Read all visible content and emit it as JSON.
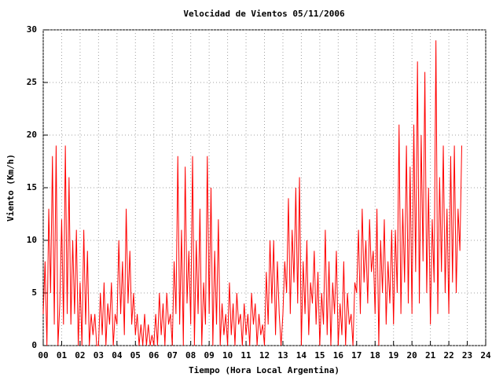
{
  "chart_data": {
    "type": "line",
    "title": "Velocidad de Vientos 05/11/2006",
    "x_label": "Tiempo (Hora Local Argentina)",
    "y_label": "Viento (Km/h)",
    "color": "#ff0000",
    "grid": true,
    "xlim": [
      0,
      24
    ],
    "ylim": [
      0,
      30
    ],
    "xticks": [
      {
        "value": 0,
        "label": "00"
      },
      {
        "value": 1,
        "label": "01"
      },
      {
        "value": 2,
        "label": "02"
      },
      {
        "value": 3,
        "label": "03"
      },
      {
        "value": 4,
        "label": "04"
      },
      {
        "value": 5,
        "label": "05"
      },
      {
        "value": 6,
        "label": "06"
      },
      {
        "value": 7,
        "label": "07"
      },
      {
        "value": 8,
        "label": "08"
      },
      {
        "value": 9,
        "label": "09"
      },
      10,
      11,
      12,
      13,
      14,
      15,
      16,
      17,
      18,
      19,
      20,
      21,
      22,
      23,
      24
    ],
    "yticks": [
      0,
      5,
      10,
      15,
      20,
      25,
      30
    ],
    "x": [
      0,
      0.1,
      0.2,
      0.3,
      0.4,
      0.5,
      0.6,
      0.7,
      0.8,
      0.9,
      1,
      1.1,
      1.2,
      1.3,
      1.4,
      1.5,
      1.6,
      1.7,
      1.8,
      1.9,
      2,
      2.1,
      2.2,
      2.3,
      2.4,
      2.5,
      2.6,
      2.7,
      2.8,
      2.9,
      3,
      3.1,
      3.2,
      3.3,
      3.4,
      3.5,
      3.6,
      3.7,
      3.8,
      3.9,
      4,
      4.1,
      4.2,
      4.3,
      4.4,
      4.5,
      4.6,
      4.7,
      4.8,
      4.9,
      5,
      5.1,
      5.2,
      5.3,
      5.4,
      5.5,
      5.6,
      5.7,
      5.8,
      5.9,
      6,
      6.1,
      6.2,
      6.3,
      6.4,
      6.5,
      6.6,
      6.7,
      6.8,
      6.9,
      7,
      7.1,
      7.2,
      7.3,
      7.4,
      7.5,
      7.6,
      7.7,
      7.8,
      7.9,
      8,
      8.1,
      8.2,
      8.3,
      8.4,
      8.5,
      8.6,
      8.7,
      8.8,
      8.9,
      9,
      9.1,
      9.2,
      9.3,
      9.4,
      9.5,
      9.6,
      9.7,
      9.8,
      9.9,
      10,
      10.1,
      10.2,
      10.3,
      10.4,
      10.5,
      10.6,
      10.7,
      10.8,
      10.9,
      11,
      11.1,
      11.2,
      11.3,
      11.4,
      11.5,
      11.6,
      11.7,
      11.8,
      11.9,
      12,
      12.1,
      12.2,
      12.3,
      12.4,
      12.5,
      12.6,
      12.7,
      12.8,
      12.9,
      13,
      13.1,
      13.2,
      13.3,
      13.4,
      13.5,
      13.6,
      13.7,
      13.8,
      13.9,
      14,
      14.1,
      14.2,
      14.3,
      14.4,
      14.5,
      14.6,
      14.7,
      14.8,
      14.9,
      15,
      15.1,
      15.2,
      15.3,
      15.4,
      15.5,
      15.6,
      15.7,
      15.8,
      15.9,
      16,
      16.1,
      16.2,
      16.3,
      16.4,
      16.5,
      16.6,
      16.7,
      16.8,
      16.9,
      17,
      17.1,
      17.2,
      17.3,
      17.4,
      17.5,
      17.6,
      17.7,
      17.8,
      17.9,
      18,
      18.1,
      18.2,
      18.3,
      18.4,
      18.5,
      18.6,
      18.7,
      18.8,
      18.9,
      19,
      19.1,
      19.2,
      19.3,
      19.4,
      19.5,
      19.6,
      19.7,
      19.8,
      19.9,
      20,
      20.1,
      20.2,
      20.3,
      20.4,
      20.5,
      20.6,
      20.7,
      20.8,
      20.9,
      21,
      21.1,
      21.2,
      21.3,
      21.4,
      21.5,
      21.6,
      21.7,
      21.8,
      21.9,
      22,
      22.1,
      22.2,
      22.3,
      22.4,
      22.5,
      22.6,
      22.7
    ],
    "values": [
      3,
      8,
      0,
      13,
      5,
      18,
      2,
      19,
      0,
      4,
      12,
      2,
      19,
      3,
      16,
      2,
      10,
      3,
      11,
      0,
      6,
      0,
      11,
      2,
      9,
      0,
      3,
      1,
      3,
      0,
      0,
      5,
      1,
      6,
      0,
      4,
      2,
      6,
      0,
      3,
      2,
      10,
      3,
      8,
      1,
      13,
      4,
      9,
      2,
      5,
      1,
      3,
      0,
      2,
      0,
      3,
      0,
      2,
      0,
      1,
      0,
      3,
      0,
      5,
      1,
      4,
      0,
      5,
      2,
      3,
      0,
      8,
      3,
      18,
      2,
      11,
      0,
      17,
      4,
      9,
      2,
      18,
      0,
      10,
      3,
      13,
      0,
      6,
      2,
      18,
      3,
      15,
      0,
      9,
      2,
      12,
      0,
      4,
      1,
      3,
      0,
      6,
      1,
      4,
      0,
      5,
      2,
      3,
      0,
      4,
      1,
      3,
      0,
      5,
      2,
      4,
      0,
      3,
      1,
      2,
      0,
      7,
      2,
      10,
      4,
      10,
      1,
      8,
      3,
      0,
      3,
      8,
      5,
      14,
      3,
      11,
      6,
      15,
      4,
      16,
      0,
      8,
      3,
      10,
      1,
      6,
      4,
      9,
      2,
      7,
      0,
      5,
      2,
      11,
      1,
      8,
      0,
      6,
      3,
      9,
      0,
      4,
      1,
      8,
      0,
      5,
      2,
      3,
      0,
      6,
      5,
      11,
      3,
      13,
      6,
      10,
      4,
      12,
      7,
      9,
      3,
      13,
      0,
      10,
      5,
      12,
      2,
      8,
      4,
      11,
      2,
      11,
      5,
      21,
      3,
      13,
      6,
      19,
      4,
      17,
      3,
      21,
      7,
      27,
      4,
      20,
      8,
      26,
      5,
      15,
      2,
      12,
      6,
      29,
      3,
      16,
      7,
      19,
      5,
      13,
      3,
      18,
      6,
      19,
      5,
      13,
      9,
      19
    ]
  }
}
